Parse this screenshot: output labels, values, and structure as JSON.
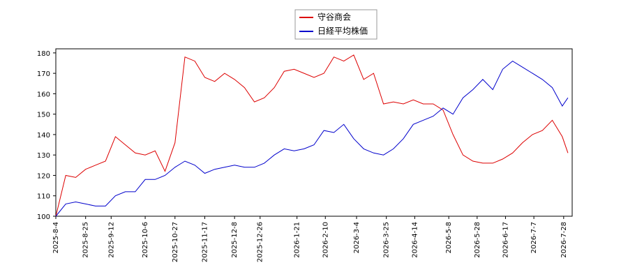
{
  "chart_data": {
    "type": "line",
    "x": [
      "2025-8-4",
      "2025-8-11",
      "2025-8-18",
      "2025-8-25",
      "2025-9-1",
      "2025-9-8",
      "2025-9-15",
      "2025-9-22",
      "2025-9-29",
      "2025-10-6",
      "2025-10-13",
      "2025-10-20",
      "2025-10-27",
      "2025-11-3",
      "2025-11-10",
      "2025-11-17",
      "2025-11-24",
      "2025-12-1",
      "2025-12-8",
      "2025-12-15",
      "2025-12-22",
      "2025-12-29",
      "2026-1-5",
      "2026-1-12",
      "2026-1-19",
      "2026-1-26",
      "2026-2-2",
      "2026-2-9",
      "2026-2-16",
      "2026-2-23",
      "2026-3-2",
      "2026-3-9",
      "2026-3-16",
      "2026-3-23",
      "2026-3-30",
      "2026-4-6",
      "2026-4-13",
      "2026-4-20",
      "2026-4-27",
      "2026-5-4",
      "2026-5-11",
      "2026-5-18",
      "2026-5-25",
      "2026-6-1",
      "2026-6-8",
      "2026-6-15",
      "2026-6-22",
      "2026-6-29",
      "2026-7-6",
      "2026-7-13",
      "2026-7-20",
      "2026-7-27",
      "2026-7-31"
    ],
    "series": [
      {
        "name": "守谷商会",
        "color": "#dd0000",
        "values": [
          100,
          120,
          119,
          123,
          125,
          127,
          139,
          135,
          131,
          130,
          132,
          122,
          136,
          178,
          176,
          168,
          166,
          170,
          167,
          163,
          156,
          158,
          163,
          171,
          172,
          170,
          168,
          170,
          178,
          176,
          179,
          167,
          170,
          155,
          156,
          155,
          157,
          155,
          155,
          152,
          140,
          130,
          127,
          126,
          126,
          128,
          131,
          136,
          140,
          142,
          147,
          139,
          131
        ]
      },
      {
        "name": "日経平均株価",
        "color": "#0000cc",
        "values": [
          100,
          106,
          107,
          106,
          105,
          105,
          110,
          112,
          112,
          118,
          118,
          120,
          124,
          127,
          125,
          121,
          123,
          124,
          125,
          124,
          124,
          126,
          130,
          133,
          132,
          133,
          135,
          142,
          141,
          145,
          138,
          133,
          131,
          130,
          133,
          138,
          145,
          147,
          149,
          153,
          150,
          158,
          162,
          167,
          162,
          172,
          176,
          173,
          170,
          167,
          163,
          154,
          158
        ]
      }
    ],
    "xlim": [
      "2025-8-4",
      "2026-8-3"
    ],
    "xticks": [
      "2025-8-4",
      "2025-8-25",
      "2025-9-12",
      "2025-10-6",
      "2025-10-27",
      "2025-11-17",
      "2025-12-8",
      "2025-12-26",
      "2026-1-21",
      "2026-2-10",
      "2026-3-4",
      "2026-3-25",
      "2026-4-14",
      "2026-5-8",
      "2026-5-28",
      "2026-6-17",
      "2026-7-7",
      "2026-7-28"
    ],
    "ylim": [
      100,
      182
    ],
    "yticks": [
      100,
      110,
      120,
      130,
      140,
      150,
      160,
      170,
      180
    ],
    "legend": "top"
  }
}
